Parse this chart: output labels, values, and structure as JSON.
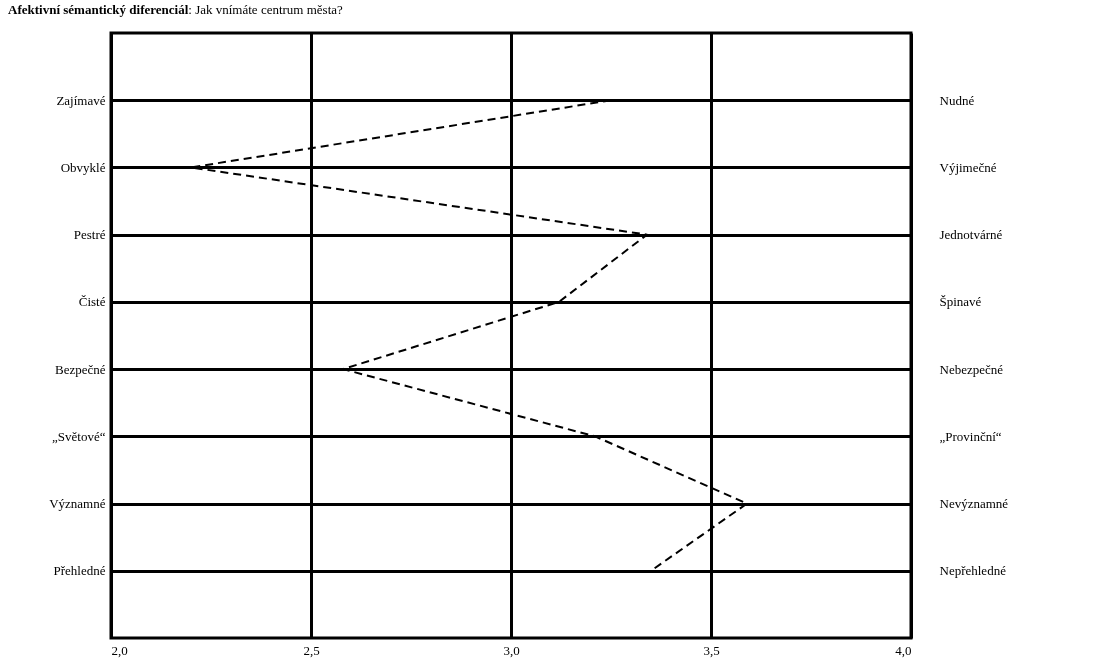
{
  "chart_data": {
    "type": "line",
    "orientation": "horizontal",
    "title": "Afektivní sémantický diferenciál: Jak vnímáte centrum města?",
    "categories": [
      "Zajímavé",
      "Obvyklé",
      "Pestré",
      "Čisté",
      "Bezpečné",
      "„Světové“",
      "Významné",
      "Přehledné"
    ],
    "y2_categories": [
      "Nudné",
      "Výjimečné",
      "Jednotvárné",
      "Špinavé",
      "Nebezpečné",
      "„Provinční“",
      "Nevýznamné",
      "Nepřehledné"
    ],
    "series": [
      {
        "color": "#000000",
        "values": [
          3.25,
          2.2,
          3.34,
          3.12,
          2.58,
          3.21,
          3.59,
          3.35
        ]
      }
    ],
    "xlim": [
      2,
      4
    ],
    "xticks": [
      {
        "value": 2,
        "label": "2,0"
      },
      {
        "value": 2.5,
        "label": "2,5"
      },
      {
        "value": 3,
        "label": "3,0"
      },
      {
        "value": 3.5,
        "label": "3,5"
      },
      {
        "value": 4,
        "label": "4,0"
      }
    ],
    "grid": true,
    "marker": "none",
    "line_style": "dashed"
  }
}
